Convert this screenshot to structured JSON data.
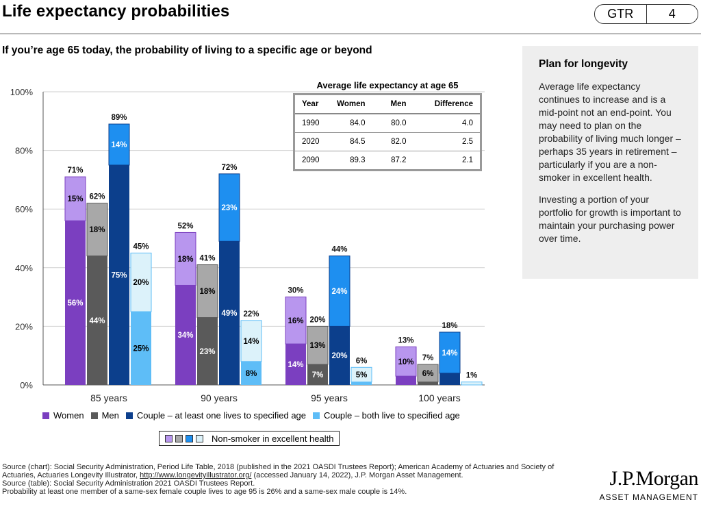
{
  "header": {
    "title": "Life expectancy probabilities",
    "badge_left": "GTR",
    "badge_right": "4"
  },
  "subtitle": "If you’re age 65 today, the probability of living to a specific age or beyond",
  "sidebar": {
    "title": "Plan for longevity",
    "p1": "Average life expectancy continues to increase and is a mid-point not an end-point. You may need to plan on the probability of living much longer – perhaps 35 years in retirement – particularly if you are a non-smoker in excellent health.",
    "p2": "Investing a portion of your portfolio for growth is important to maintain your purchasing power over time."
  },
  "colors": {
    "women": "#7b3fc0",
    "women_light": "#b896ee",
    "men": "#5a5a5a",
    "men_light": "#a8a8a8",
    "couple_one": "#0c3f8c",
    "couple_one_light": "#1e8ff0",
    "couple_both": "#5ebdf7",
    "couple_both_light": "#dcf2fa"
  },
  "life_table": {
    "title": "Average life expectancy at age 65",
    "headers": [
      "Year",
      "Women",
      "Men",
      "Difference"
    ],
    "rows": [
      [
        "1990",
        "84.0",
        "80.0",
        "4.0"
      ],
      [
        "2020",
        "84.5",
        "82.0",
        "2.5"
      ],
      [
        "2090",
        "89.3",
        "87.2",
        "2.1"
      ]
    ]
  },
  "legend": {
    "women": "Women",
    "men": "Men",
    "couple_one": "Couple – at least one lives to specified age",
    "couple_both": "Couple – both live to specified age",
    "nonsmoker": "Non-smoker in excellent health"
  },
  "chart_data": {
    "type": "bar",
    "stacked": true,
    "categories": [
      "85 years",
      "90 years",
      "95 years",
      "100 years"
    ],
    "ylim": [
      0,
      100
    ],
    "yticks": [
      "0%",
      "20%",
      "40%",
      "60%",
      "80%",
      "100%"
    ],
    "grid": true,
    "series": [
      {
        "name": "Women",
        "base": [
          56,
          34,
          14,
          3
        ],
        "nonsmoker": [
          15,
          18,
          16,
          10
        ],
        "total": [
          71,
          52,
          30,
          13
        ],
        "base_labels": [
          "56%",
          "34%",
          "14%",
          ""
        ],
        "nonsmoker_labels": [
          "15%",
          "18%",
          "16%",
          "10%"
        ],
        "total_labels": [
          "71%",
          "52%",
          "30%",
          "13%"
        ]
      },
      {
        "name": "Men",
        "base": [
          44,
          23,
          7,
          1
        ],
        "nonsmoker": [
          18,
          18,
          13,
          6
        ],
        "total": [
          62,
          41,
          20,
          7
        ],
        "base_labels": [
          "44%",
          "23%",
          "7%",
          ""
        ],
        "nonsmoker_labels": [
          "18%",
          "18%",
          "13%",
          "6%"
        ],
        "total_labels": [
          "62%",
          "41%",
          "20%",
          "7%"
        ]
      },
      {
        "name": "Couple – at least one lives to specified age",
        "base": [
          75,
          49,
          20,
          4
        ],
        "nonsmoker": [
          14,
          23,
          24,
          14
        ],
        "total": [
          89,
          72,
          44,
          18
        ],
        "base_labels": [
          "75%",
          "49%",
          "20%",
          ""
        ],
        "nonsmoker_labels": [
          "14%",
          "23%",
          "24%",
          "14%"
        ],
        "total_labels": [
          "89%",
          "72%",
          "44%",
          "18%"
        ]
      },
      {
        "name": "Couple – both live to specified age",
        "base": [
          25,
          8,
          1,
          0
        ],
        "nonsmoker": [
          20,
          14,
          5,
          1
        ],
        "total": [
          45,
          22,
          6,
          1
        ],
        "base_labels": [
          "25%",
          "8%",
          "",
          ""
        ],
        "nonsmoker_labels": [
          "20%",
          "14%",
          "5%",
          ""
        ],
        "total_labels": [
          "45%",
          "22%",
          "6%",
          "1%"
        ]
      }
    ]
  },
  "sources": {
    "line1": "Source (chart): Social Security Administration, Period Life Table, 2018 (published in the 2021 OASDI Trustees Report); American Academy of Actuaries and Society of Actuaries, Actuaries Longevity Illustrator, ",
    "link": "http://www.longevityillustrator.org/",
    "line1b": " (accessed January 14, 2022), J.P. Morgan Asset Management.",
    "line2": "Source (table): Social Security Administration 2021 OASDI Trustees Report.",
    "line3": "Probability at least one member of a same-sex female couple lives to age 95 is 26% and a same-sex male couple is 14%."
  },
  "logo": {
    "line1": "J.P.Morgan",
    "line2": "ASSET MANAGEMENT"
  }
}
